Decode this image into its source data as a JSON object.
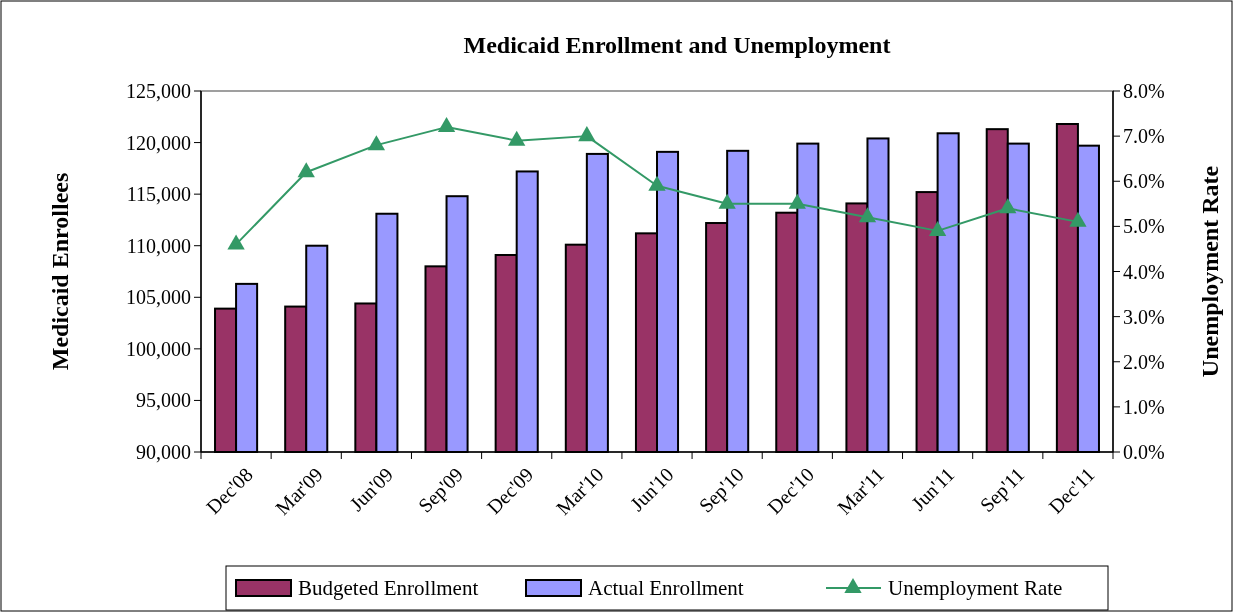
{
  "chart_data": {
    "type": "bar",
    "title": "Medicaid Enrollment and Unemployment",
    "ylabel": "Medicaid Enrollees",
    "y2label": "Unemployment Rate",
    "categories": [
      "Dec'08",
      "Mar'09",
      "Jun'09",
      "Sep'09",
      "Dec'09",
      "Mar'10",
      "Jun'10",
      "Sep'10",
      "Dec'10",
      "Mar'11",
      "Jun'11",
      "Sep'11",
      "Dec'11"
    ],
    "series": [
      {
        "name": "Budgeted Enrollment",
        "color": "#993366",
        "values": [
          103900,
          104100,
          104400,
          108000,
          109100,
          110100,
          111200,
          112200,
          113200,
          114100,
          115200,
          121300,
          121800
        ]
      },
      {
        "name": "Actual Enrollment",
        "color": "#9999ff",
        "values": [
          106300,
          110000,
          113100,
          114800,
          117200,
          118900,
          119100,
          119200,
          119900,
          120400,
          120900,
          119900,
          119700
        ]
      },
      {
        "name": "Unemployment Rate",
        "type": "line",
        "axis": "y2",
        "color": "#339966",
        "marker": "triangle",
        "values": [
          4.6,
          6.2,
          6.8,
          7.2,
          6.9,
          7.0,
          5.9,
          5.5,
          5.5,
          5.2,
          4.9,
          5.4,
          5.1
        ]
      }
    ],
    "ylim": [
      90000,
      125000
    ],
    "yticks": [
      {
        "value": 90000,
        "label": "90,000"
      },
      {
        "value": 95000,
        "label": "95,000"
      },
      {
        "value": 100000,
        "label": "100,000"
      },
      {
        "value": 105000,
        "label": "105,000"
      },
      {
        "value": 110000,
        "label": "110,000"
      },
      {
        "value": 115000,
        "label": "115,000"
      },
      {
        "value": 120000,
        "label": "120,000"
      },
      {
        "value": 125000,
        "label": "125,000"
      }
    ],
    "y2lim": [
      0,
      8
    ],
    "y2ticks": [
      {
        "value": 0,
        "label": "0.0%"
      },
      {
        "value": 1,
        "label": "1.0%"
      },
      {
        "value": 2,
        "label": "2.0%"
      },
      {
        "value": 3,
        "label": "3.0%"
      },
      {
        "value": 4,
        "label": "4.0%"
      },
      {
        "value": 5,
        "label": "5.0%"
      },
      {
        "value": 6,
        "label": "6.0%"
      },
      {
        "value": 7,
        "label": "7.0%"
      },
      {
        "value": 8,
        "label": "8.0%"
      }
    ],
    "legend": "bottom",
    "grid": false
  }
}
